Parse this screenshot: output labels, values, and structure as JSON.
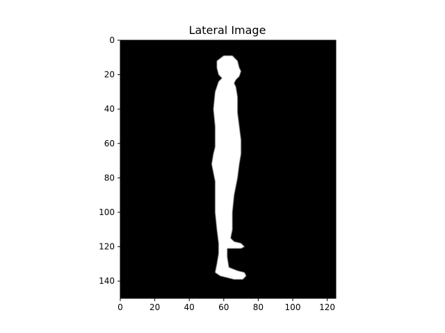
{
  "title": "Lateral Image",
  "colors": {
    "background": "#000000",
    "silhouette": "#ffffff",
    "frame": "#000000",
    "text": "#000000"
  },
  "axes": {
    "x_range": [
      0,
      125
    ],
    "y_range": [
      150,
      0
    ],
    "x_ticks": [
      0,
      20,
      40,
      60,
      80,
      100,
      120
    ],
    "y_ticks": [
      0,
      20,
      40,
      60,
      80,
      100,
      120,
      140
    ]
  },
  "image": {
    "subject": "side-view human silhouette",
    "silhouette_polygon": [
      [
        56,
        12
      ],
      [
        60,
        9
      ],
      [
        65,
        9
      ],
      [
        68,
        12
      ],
      [
        69,
        16
      ],
      [
        70,
        18
      ],
      [
        69,
        21
      ],
      [
        67,
        23
      ],
      [
        66,
        25
      ],
      [
        67,
        27
      ],
      [
        68,
        33
      ],
      [
        68,
        42
      ],
      [
        69,
        50
      ],
      [
        70,
        58
      ],
      [
        70,
        66
      ],
      [
        69,
        72
      ],
      [
        68,
        80
      ],
      [
        66,
        90
      ],
      [
        65,
        100
      ],
      [
        65,
        110
      ],
      [
        64,
        115
      ],
      [
        66,
        117
      ],
      [
        70,
        118
      ],
      [
        72,
        120
      ],
      [
        70,
        121
      ],
      [
        65,
        121
      ],
      [
        62,
        121
      ],
      [
        62,
        126
      ],
      [
        63,
        132
      ],
      [
        68,
        134
      ],
      [
        72,
        135
      ],
      [
        73,
        137
      ],
      [
        71,
        139
      ],
      [
        66,
        139
      ],
      [
        62,
        138
      ],
      [
        58,
        137
      ],
      [
        55,
        135
      ],
      [
        56,
        130
      ],
      [
        57,
        124
      ],
      [
        57,
        118
      ],
      [
        56,
        110
      ],
      [
        55,
        100
      ],
      [
        55,
        90
      ],
      [
        55,
        82
      ],
      [
        54,
        77
      ],
      [
        53,
        72
      ],
      [
        54,
        66
      ],
      [
        55,
        62
      ],
      [
        55,
        50
      ],
      [
        54,
        40
      ],
      [
        55,
        30
      ],
      [
        57,
        24
      ],
      [
        59,
        22
      ],
      [
        57,
        20
      ],
      [
        56,
        16
      ]
    ]
  }
}
